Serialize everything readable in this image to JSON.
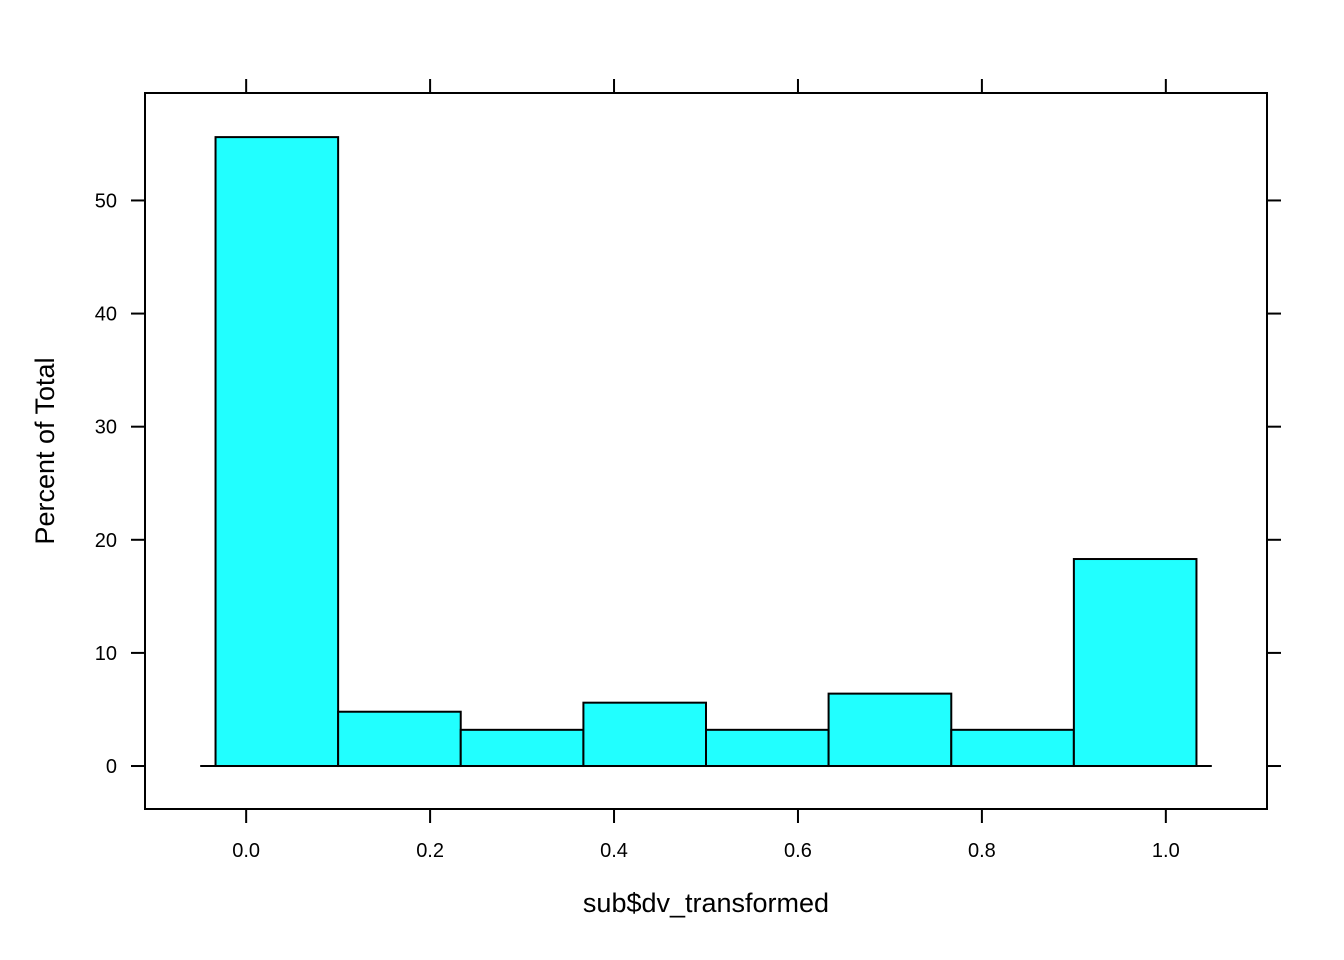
{
  "chart_data": {
    "type": "bar",
    "subtype": "histogram",
    "xlabel": "sub$dv_transformed",
    "ylabel": "Percent of Total",
    "xlim": [
      -0.11,
      1.11
    ],
    "ylim": [
      -3.8,
      59.5
    ],
    "x_ticks": [
      0.0,
      0.2,
      0.4,
      0.6,
      0.8,
      1.0
    ],
    "x_tick_labels": [
      "0.0",
      "0.2",
      "0.4",
      "0.6",
      "0.8",
      "1.0"
    ],
    "y_ticks": [
      0,
      10,
      20,
      30,
      40,
      50
    ],
    "y_tick_labels": [
      "0",
      "10",
      "20",
      "30",
      "40",
      "50"
    ],
    "baseline_range": [
      -0.05,
      1.05
    ],
    "bin_edges": [
      -0.0333,
      0.1,
      0.2333,
      0.3667,
      0.5,
      0.6333,
      0.7667,
      0.9,
      1.0333
    ],
    "values": [
      55.6,
      4.8,
      3.2,
      5.6,
      3.2,
      6.4,
      3.2,
      18.3
    ],
    "bar_color": "#21FFFF",
    "border_color": "#000000",
    "grid": false,
    "legend": "none"
  }
}
